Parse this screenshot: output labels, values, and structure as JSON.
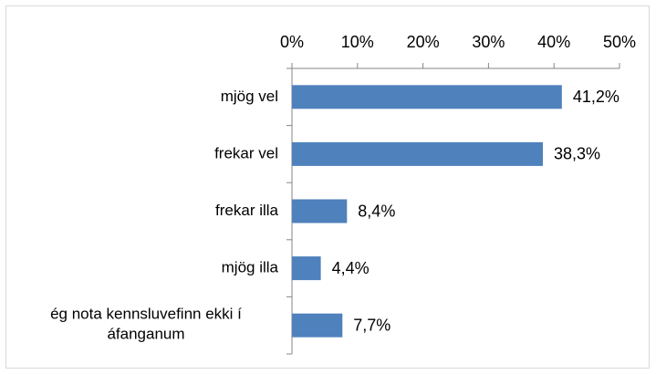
{
  "chart_data": {
    "type": "bar",
    "orientation": "horizontal",
    "categories": [
      "mjög vel",
      "frekar vel",
      "frekar illa",
      "mjög illa",
      "ég nota kennsluvefinn ekki í áfanganum"
    ],
    "values": [
      41.2,
      38.3,
      8.4,
      4.4,
      7.7
    ],
    "value_labels": [
      "41,2%",
      "38,3%",
      "8,4%",
      "4,4%",
      "7,7%"
    ],
    "color": "#4f81bd",
    "xlim": [
      0,
      50
    ],
    "xticks": [
      {
        "value": 0,
        "label": "0%"
      },
      {
        "value": 10,
        "label": "10%"
      },
      {
        "value": 20,
        "label": "20%"
      },
      {
        "value": 30,
        "label": "30%"
      },
      {
        "value": 40,
        "label": "40%"
      },
      {
        "value": 50,
        "label": "50%"
      }
    ],
    "grid": false
  }
}
